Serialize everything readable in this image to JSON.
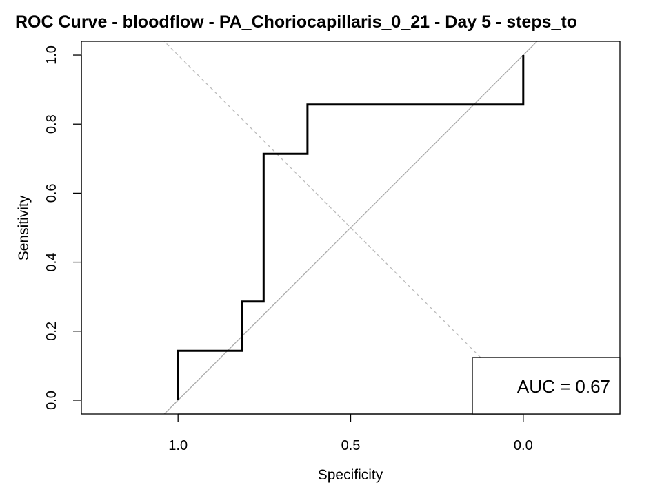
{
  "chart_data": {
    "type": "line",
    "title": "ROC Curve - bloodflow - PA_Choriocapillaris_0_21 - Day 5 - steps_to",
    "xlabel": "Specificity",
    "ylabel": "Sensitivity",
    "x_reversed": true,
    "xlim": [
      1.28,
      -0.28
    ],
    "ylim": [
      -0.04,
      1.04
    ],
    "x_ticks": [
      1.0,
      0.5,
      0.0
    ],
    "x_tick_labels": [
      "1.0",
      "0.5",
      "0.0"
    ],
    "y_ticks": [
      0.0,
      0.2,
      0.4,
      0.6,
      0.8,
      1.0
    ],
    "y_tick_labels": [
      "0.0",
      "0.2",
      "0.4",
      "0.6",
      "0.8",
      "1.0"
    ],
    "grid": false,
    "series": [
      {
        "color": "#000000",
        "specificity": [
          1.0,
          1.0,
          0.815,
          0.815,
          0.752,
          0.752,
          0.625,
          0.625,
          0.0,
          0.0
        ],
        "sensitivity": [
          0.0,
          0.143,
          0.143,
          0.286,
          0.286,
          0.714,
          0.714,
          0.857,
          0.857,
          1.0
        ]
      }
    ],
    "reference_lines": [
      {
        "kind": "chance-diagonal",
        "color": "#aaaaaa",
        "style": "solid"
      },
      {
        "kind": "youden-diagonal",
        "color": "#bbbbbb",
        "style": "dashed"
      }
    ],
    "annotation": {
      "text": "AUC = 0.67",
      "placement": "bottom-right"
    }
  }
}
